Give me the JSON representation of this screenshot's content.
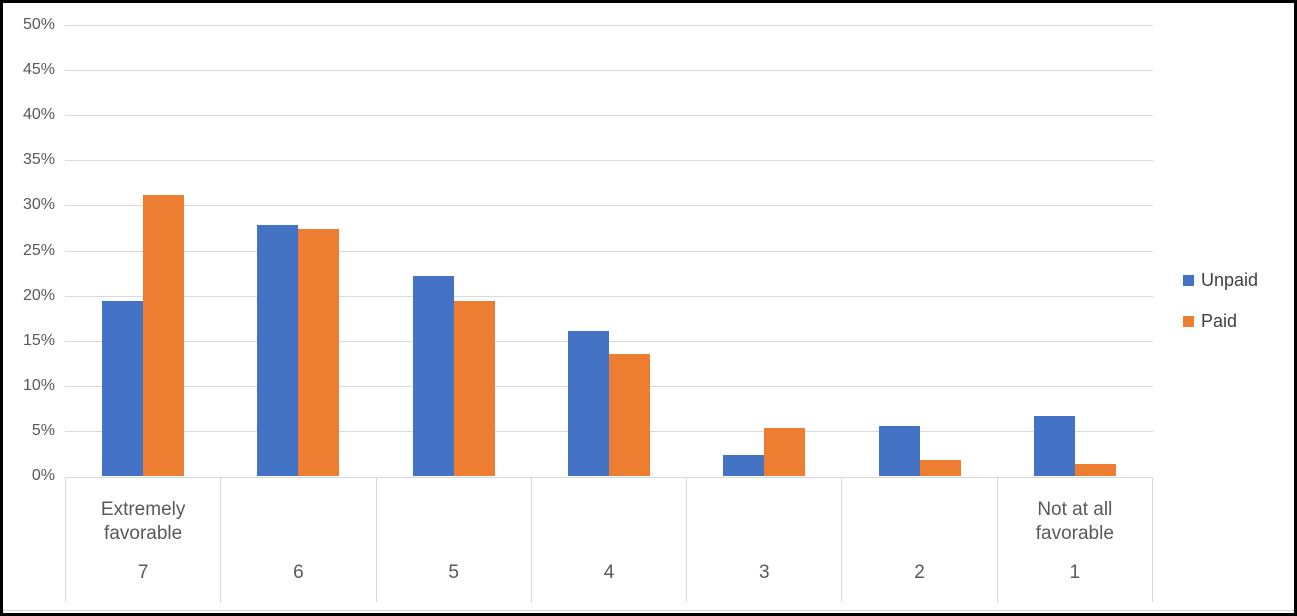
{
  "chart_data": {
    "type": "bar",
    "title": "",
    "xlabel": "",
    "ylabel": "",
    "categories": [
      "7",
      "6",
      "5",
      "4",
      "3",
      "2",
      "1"
    ],
    "category_captions": [
      "Extremely favorable",
      "",
      "",
      "",
      "",
      "",
      "Not at all favorable"
    ],
    "series": [
      {
        "name": "Unpaid",
        "color": "#4472C4",
        "values": [
          19.4,
          27.8,
          22.2,
          16.1,
          2.3,
          5.5,
          6.7
        ]
      },
      {
        "name": "Paid",
        "color": "#ED7D31",
        "values": [
          31.1,
          27.4,
          19.4,
          13.5,
          5.3,
          1.8,
          1.3
        ]
      }
    ],
    "ylim": [
      0,
      50
    ],
    "ytick_step": 5,
    "ytick_labels_top_to_bottom": [
      "50%",
      "45%",
      "40%",
      "35%",
      "30%",
      "25%",
      "20%",
      "15%",
      "10%",
      "5%",
      "0%"
    ],
    "grid": true,
    "legend_position": "right",
    "legend": [
      "Unpaid",
      "Paid"
    ]
  },
  "colors": {
    "gridline": "#d9d9d9",
    "axis_text": "#595959",
    "frame_border": "#000000",
    "background": "#ffffff",
    "series_unpaid": "#4472C4",
    "series_paid": "#ED7D31"
  }
}
